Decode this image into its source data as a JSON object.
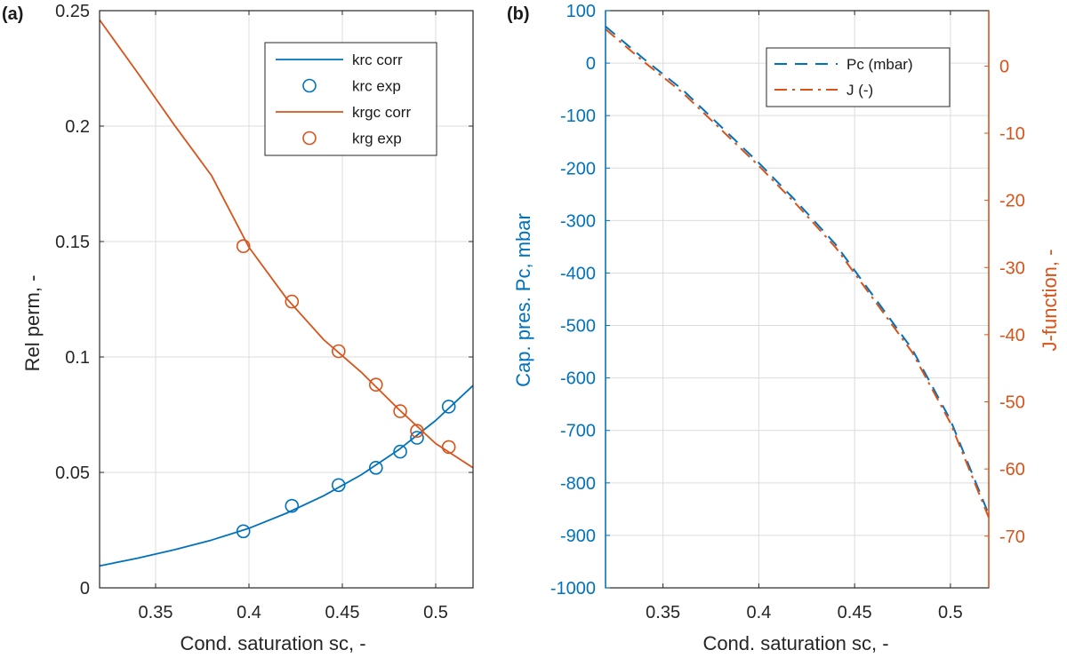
{
  "chart_data": [
    {
      "type": "line",
      "panel_label": "(a)",
      "xlabel": "Cond. saturation sc, -",
      "ylabel": "Rel perm, -",
      "xlim": [
        0.32,
        0.52
      ],
      "ylim": [
        0,
        0.25
      ],
      "xticks": [
        0.35,
        0.4,
        0.45,
        0.5
      ],
      "xtick_labels": [
        "0.35",
        "0.4",
        "0.45",
        "0.5"
      ],
      "yticks": [
        0,
        0.05,
        0.1,
        0.15,
        0.2,
        0.25
      ],
      "ytick_labels": [
        "0",
        "0.05",
        "0.1",
        "0.15",
        "0.2",
        "0.25"
      ],
      "grid": true,
      "legend_position": "top-right",
      "series": [
        {
          "name": "krc corr",
          "kind": "line",
          "color": "#0072BD",
          "x": [
            0.32,
            0.34,
            0.36,
            0.38,
            0.4,
            0.42,
            0.44,
            0.46,
            0.48,
            0.5,
            0.52
          ],
          "y": [
            0.0095,
            0.0128,
            0.0165,
            0.0207,
            0.0258,
            0.0323,
            0.0399,
            0.0489,
            0.0597,
            0.0725,
            0.0876
          ]
        },
        {
          "name": "krc exp",
          "kind": "marker",
          "color": "#0072BD",
          "x": [
            0.397,
            0.423,
            0.448,
            0.468,
            0.481,
            0.49,
            0.507
          ],
          "y": [
            0.0245,
            0.0355,
            0.0445,
            0.052,
            0.059,
            0.065,
            0.0785
          ]
        },
        {
          "name": "krgc corr",
          "kind": "line",
          "color": "#D95319",
          "x": [
            0.32,
            0.34,
            0.36,
            0.38,
            0.4,
            0.42,
            0.44,
            0.46,
            0.48,
            0.5,
            0.52
          ],
          "y": [
            0.246,
            0.2235,
            0.2005,
            0.1785,
            0.1475,
            0.1255,
            0.1075,
            0.0935,
            0.0775,
            0.0625,
            0.052
          ]
        },
        {
          "name": "krg exp",
          "kind": "marker",
          "color": "#D95319",
          "x": [
            0.397,
            0.423,
            0.448,
            0.468,
            0.481,
            0.49,
            0.507
          ],
          "y": [
            0.148,
            0.124,
            0.1025,
            0.088,
            0.0765,
            0.068,
            0.061
          ]
        }
      ]
    },
    {
      "type": "line",
      "panel_label": "(b)",
      "xlabel": "Cond. saturation sc, -",
      "ylabel_left": "Cap. pres. Pc, mbar",
      "ylabel_right": "J-function, -",
      "xlim": [
        0.32,
        0.52
      ],
      "ylim_left": [
        -1000,
        100
      ],
      "ylim_right": [
        -77.7,
        8.25
      ],
      "xticks": [
        0.35,
        0.4,
        0.45,
        0.5
      ],
      "xtick_labels": [
        "0.35",
        "0.4",
        "0.45",
        "0.5"
      ],
      "yticks_left": [
        100,
        0,
        -100,
        -200,
        -300,
        -400,
        -500,
        -600,
        -700,
        -800,
        -900,
        -1000
      ],
      "ytick_labels_left": [
        "100",
        "0",
        "-100",
        "-200",
        "-300",
        "-400",
        "-500",
        "-600",
        "-700",
        "-800",
        "-900",
        "-1000"
      ],
      "yticks_right": [
        0,
        -10,
        -20,
        -30,
        -40,
        -50,
        -60,
        -70
      ],
      "ytick_labels_right": [
        "0",
        "-10",
        "-20",
        "-30",
        "-40",
        "-50",
        "-60",
        "-70"
      ],
      "left_axis_color": "#0072BD",
      "right_axis_color": "#D95319",
      "grid": true,
      "legend_position": "top-right",
      "series": [
        {
          "name": "Pc (mbar)",
          "axis": "left",
          "style": "dashed",
          "color": "#0072BD",
          "x": [
            0.32,
            0.34,
            0.36,
            0.38,
            0.4,
            0.42,
            0.44,
            0.46,
            0.48,
            0.5,
            0.52
          ],
          "y": [
            70,
            8,
            -50,
            -120,
            -190,
            -265,
            -345,
            -445,
            -545,
            -680,
            -860
          ]
        },
        {
          "name": "J (-)",
          "axis": "right",
          "style": "dashdot",
          "color": "#D95319",
          "x": [
            0.32,
            0.34,
            0.36,
            0.38,
            0.4,
            0.42,
            0.44,
            0.46,
            0.48,
            0.5,
            0.52
          ],
          "y": [
            5.48,
            0.63,
            -3.9,
            -9.38,
            -14.85,
            -20.71,
            -26.97,
            -34.78,
            -42.6,
            -53.15,
            -67.23
          ]
        }
      ]
    }
  ]
}
